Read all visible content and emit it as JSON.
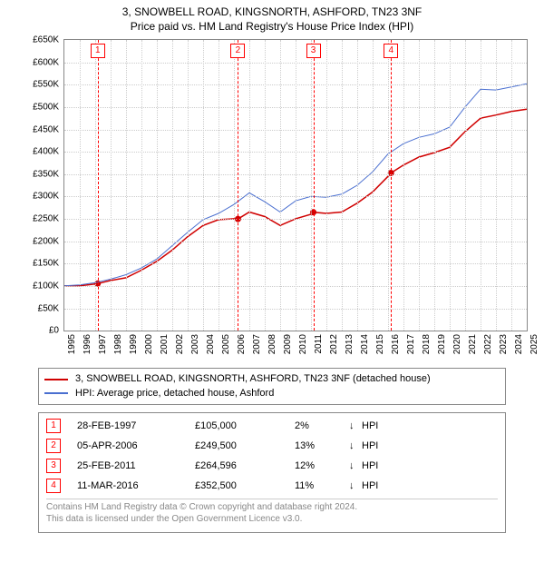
{
  "title": {
    "line1": "3, SNOWBELL ROAD, KINGSNORTH, ASHFORD, TN23 3NF",
    "line2": "Price paid vs. HM Land Registry's House Price Index (HPI)",
    "fontsize": 12
  },
  "chart": {
    "type": "line",
    "background_color": "#ffffff",
    "grid_color": "#cccccc",
    "border_color": "#888888",
    "tick_fontsize": 10,
    "y_axis": {
      "min": 0,
      "max": 650000,
      "step": 50000,
      "labels": [
        "£0",
        "£50K",
        "£100K",
        "£150K",
        "£200K",
        "£250K",
        "£300K",
        "£350K",
        "£400K",
        "£450K",
        "£500K",
        "£550K",
        "£600K",
        "£650K"
      ]
    },
    "x_axis": {
      "min": 1995,
      "max": 2025,
      "step": 1,
      "labels": [
        "1995",
        "1996",
        "1997",
        "1998",
        "1999",
        "2000",
        "2001",
        "2002",
        "2003",
        "2004",
        "2005",
        "2006",
        "2007",
        "2008",
        "2009",
        "2010",
        "2011",
        "2012",
        "2013",
        "2014",
        "2015",
        "2016",
        "2017",
        "2018",
        "2019",
        "2020",
        "2021",
        "2022",
        "2023",
        "2024",
        "2025"
      ]
    },
    "markers": [
      {
        "n": "1",
        "year": 1997.16
      },
      {
        "n": "2",
        "year": 2006.26
      },
      {
        "n": "3",
        "year": 2011.15
      },
      {
        "n": "4",
        "year": 2016.19
      }
    ],
    "series": [
      {
        "name": "price_paid",
        "color": "#d00000",
        "width": 1.5,
        "points": [
          [
            1995,
            100000
          ],
          [
            1996,
            100000
          ],
          [
            1997,
            104000
          ],
          [
            1997.16,
            105000
          ],
          [
            1998,
            112000
          ],
          [
            1999,
            118000
          ],
          [
            2000,
            135000
          ],
          [
            2001,
            155000
          ],
          [
            2002,
            180000
          ],
          [
            2003,
            210000
          ],
          [
            2004,
            235000
          ],
          [
            2005,
            248000
          ],
          [
            2006,
            250000
          ],
          [
            2006.26,
            249500
          ],
          [
            2007,
            265000
          ],
          [
            2008,
            255000
          ],
          [
            2009,
            235000
          ],
          [
            2010,
            250000
          ],
          [
            2011,
            260000
          ],
          [
            2011.15,
            264596
          ],
          [
            2012,
            262000
          ],
          [
            2013,
            265000
          ],
          [
            2014,
            285000
          ],
          [
            2015,
            310000
          ],
          [
            2016,
            345000
          ],
          [
            2016.19,
            352500
          ],
          [
            2017,
            370000
          ],
          [
            2018,
            388000
          ],
          [
            2019,
            398000
          ],
          [
            2020,
            410000
          ],
          [
            2021,
            445000
          ],
          [
            2022,
            475000
          ],
          [
            2023,
            482000
          ],
          [
            2024,
            490000
          ],
          [
            2025,
            495000
          ]
        ],
        "sale_dots": [
          [
            1997.16,
            105000
          ],
          [
            2006.26,
            249500
          ],
          [
            2011.15,
            264596
          ],
          [
            2016.19,
            352500
          ]
        ]
      },
      {
        "name": "hpi",
        "color": "#4a6fd0",
        "width": 1,
        "points": [
          [
            1995,
            100000
          ],
          [
            1996,
            102000
          ],
          [
            1997,
            107000
          ],
          [
            1998,
            115000
          ],
          [
            1999,
            125000
          ],
          [
            2000,
            140000
          ],
          [
            2001,
            160000
          ],
          [
            2002,
            190000
          ],
          [
            2003,
            220000
          ],
          [
            2004,
            248000
          ],
          [
            2005,
            262000
          ],
          [
            2006,
            282000
          ],
          [
            2007,
            308000
          ],
          [
            2008,
            288000
          ],
          [
            2009,
            265000
          ],
          [
            2010,
            290000
          ],
          [
            2011,
            300000
          ],
          [
            2012,
            298000
          ],
          [
            2013,
            305000
          ],
          [
            2014,
            325000
          ],
          [
            2015,
            355000
          ],
          [
            2016,
            395000
          ],
          [
            2017,
            418000
          ],
          [
            2018,
            432000
          ],
          [
            2019,
            440000
          ],
          [
            2020,
            455000
          ],
          [
            2021,
            500000
          ],
          [
            2022,
            540000
          ],
          [
            2023,
            538000
          ],
          [
            2024,
            545000
          ],
          [
            2025,
            552000
          ]
        ]
      }
    ]
  },
  "legend": {
    "items": [
      {
        "color": "#d00000",
        "label": "3, SNOWBELL ROAD, KINGSNORTH, ASHFORD, TN23 3NF (detached house)"
      },
      {
        "color": "#4a6fd0",
        "label": "HPI: Average price, detached house, Ashford"
      }
    ]
  },
  "sales": [
    {
      "n": "1",
      "date": "28-FEB-1997",
      "price": "£105,000",
      "pct": "2%",
      "arrow": "↓",
      "vs": "HPI"
    },
    {
      "n": "2",
      "date": "05-APR-2006",
      "price": "£249,500",
      "pct": "13%",
      "arrow": "↓",
      "vs": "HPI"
    },
    {
      "n": "3",
      "date": "25-FEB-2011",
      "price": "£264,596",
      "pct": "12%",
      "arrow": "↓",
      "vs": "HPI"
    },
    {
      "n": "4",
      "date": "11-MAR-2016",
      "price": "£352,500",
      "pct": "11%",
      "arrow": "↓",
      "vs": "HPI"
    }
  ],
  "footer": {
    "line1": "Contains HM Land Registry data © Crown copyright and database right 2024.",
    "line2": "This data is licensed under the Open Government Licence v3.0."
  }
}
